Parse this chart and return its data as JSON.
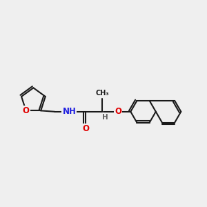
{
  "bg_color": "#efefef",
  "bond_color": "#1a1a1a",
  "bond_width": 1.5,
  "atom_O_color": "#e00000",
  "atom_N_color": "#2020e0",
  "atom_H_color": "#606060",
  "figsize": [
    3.0,
    3.0
  ],
  "dpi": 100,
  "xlim": [
    0,
    10
  ],
  "ylim": [
    0,
    10
  ]
}
